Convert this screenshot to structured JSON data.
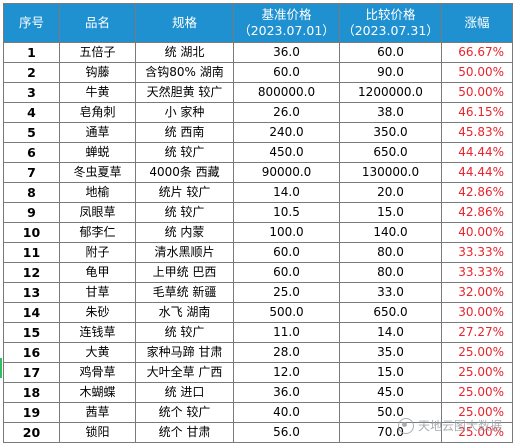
{
  "headers": {
    "index": "序号",
    "name": "品名",
    "spec": "规格",
    "base_price": "基准价格",
    "base_date": "（2023.07.01）",
    "compare_price": "比较价格",
    "compare_date": "（2023.07.31）",
    "change": "涨幅"
  },
  "rows": [
    {
      "idx": "1",
      "name": "五倍子",
      "spec": "统 湖北",
      "base": "36.0",
      "compare": "60.0",
      "change": "66.67%"
    },
    {
      "idx": "2",
      "name": "钩藤",
      "spec": "含钩80% 湖南",
      "base": "60.0",
      "compare": "90.0",
      "change": "50.00%"
    },
    {
      "idx": "3",
      "name": "牛黄",
      "spec": "天然胆黄 较广",
      "base": "800000.0",
      "compare": "1200000.0",
      "change": "50.00%"
    },
    {
      "idx": "4",
      "name": "皂角刺",
      "spec": "小 家种",
      "base": "26.0",
      "compare": "38.0",
      "change": "46.15%"
    },
    {
      "idx": "5",
      "name": "通草",
      "spec": "统 西南",
      "base": "240.0",
      "compare": "350.0",
      "change": "45.83%"
    },
    {
      "idx": "6",
      "name": "蝉蜕",
      "spec": "统 较广",
      "base": "450.0",
      "compare": "650.0",
      "change": "44.44%"
    },
    {
      "idx": "7",
      "name": "冬虫夏草",
      "spec": "4000条 西藏",
      "base": "90000.0",
      "compare": "130000.0",
      "change": "44.44%"
    },
    {
      "idx": "8",
      "name": "地榆",
      "spec": "统片 较广",
      "base": "14.0",
      "compare": "20.0",
      "change": "42.86%"
    },
    {
      "idx": "9",
      "name": "凤眼草",
      "spec": "统 较广",
      "base": "10.5",
      "compare": "15.0",
      "change": "42.86%"
    },
    {
      "idx": "10",
      "name": "郁李仁",
      "spec": "统 内蒙",
      "base": "100.0",
      "compare": "140.0",
      "change": "40.00%"
    },
    {
      "idx": "11",
      "name": "附子",
      "spec": "清水黑顺片",
      "base": "60.0",
      "compare": "80.0",
      "change": "33.33%"
    },
    {
      "idx": "12",
      "name": "龟甲",
      "spec": "上甲统 巴西",
      "base": "60.0",
      "compare": "80.0",
      "change": "33.33%"
    },
    {
      "idx": "13",
      "name": "甘草",
      "spec": "毛草统 新疆",
      "base": "25.0",
      "compare": "33.0",
      "change": "32.00%"
    },
    {
      "idx": "14",
      "name": "朱砂",
      "spec": "水飞 湖南",
      "base": "500.0",
      "compare": "650.0",
      "change": "30.00%"
    },
    {
      "idx": "15",
      "name": "连钱草",
      "spec": "统 较广",
      "base": "11.0",
      "compare": "14.0",
      "change": "27.27%"
    },
    {
      "idx": "16",
      "name": "大黄",
      "spec": "家种马蹄 甘肃",
      "base": "28.0",
      "compare": "35.0",
      "change": "25.00%"
    },
    {
      "idx": "17",
      "name": "鸡骨草",
      "spec": "大叶全草 广西",
      "base": "12.0",
      "compare": "15.0",
      "change": "25.00%"
    },
    {
      "idx": "18",
      "name": "木蝴蝶",
      "spec": "统 进口",
      "base": "36.0",
      "compare": "45.0",
      "change": "25.00%"
    },
    {
      "idx": "19",
      "name": "茜草",
      "spec": "统个 较广",
      "base": "40.0",
      "compare": "50.0",
      "change": "25.00%"
    },
    {
      "idx": "20",
      "name": "锁阳",
      "spec": "统个 甘肃",
      "base": "56.0",
      "compare": "70.0",
      "change": "25.00%"
    }
  ],
  "watermark": {
    "text": "天地云图大数据",
    "icon": "wechat-official-account-icon"
  },
  "colors": {
    "header_bg": "#1f91d1",
    "header_text": "#ffffff",
    "change_text": "#e8242c"
  }
}
